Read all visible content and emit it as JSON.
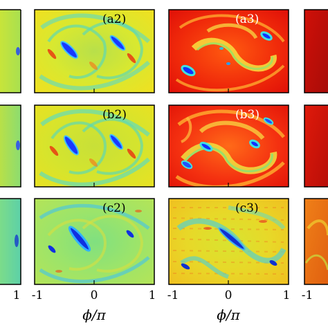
{
  "figure": {
    "type": "heatmap-grid",
    "colormap": "jet",
    "rows": [
      "a",
      "b",
      "c"
    ],
    "panel_labels": [
      "(a2)",
      "(a3)",
      "(b2)",
      "(b3)",
      "(c2)",
      "(c3)"
    ],
    "x_tick_labels": {
      "col1": [
        "1"
      ],
      "col2": [
        "-1",
        "0",
        "1"
      ],
      "col3": [
        "-1",
        "0",
        "1"
      ],
      "col4": [
        "-1"
      ]
    },
    "x_axis_label": "ϕ/π"
  },
  "colors": {
    "background": "#ffffff",
    "frame": "#000000",
    "label_on_light": "#000000",
    "label_on_red": "#ffffff"
  }
}
